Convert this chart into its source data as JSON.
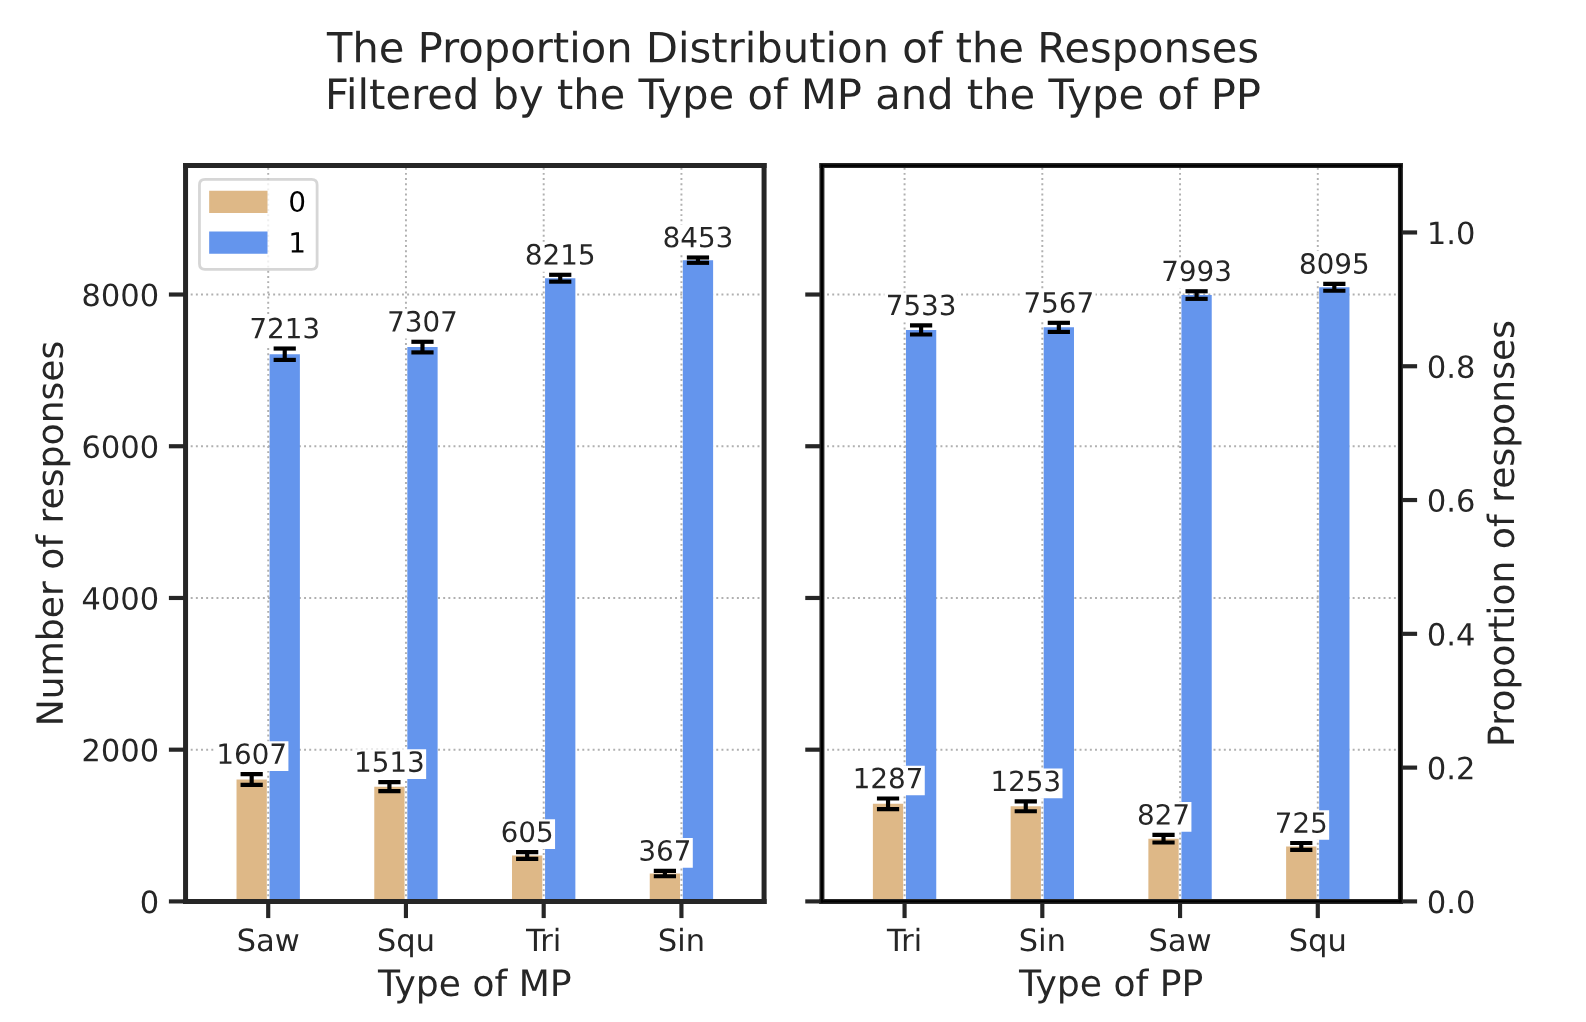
{
  "chart_data": [
    {
      "type": "bar",
      "title": "The Proportion Distribution of the Responses\nFiltered by the Type of MP and the Type of PP",
      "xlabel": "Type of MP",
      "ylabel": "Number of responses",
      "categories": [
        "Saw",
        "Squ",
        "Tri",
        "Sin"
      ],
      "series": [
        {
          "name": "0",
          "color": "#deb887",
          "values": [
            1607,
            1513,
            605,
            367
          ],
          "errors": [
            70,
            60,
            45,
            35
          ]
        },
        {
          "name": "1",
          "color": "#6495ed",
          "values": [
            7213,
            7307,
            8215,
            8453
          ],
          "errors": [
            75,
            70,
            45,
            35
          ]
        }
      ],
      "ylim": [
        0,
        9700
      ],
      "yticks": [
        0,
        2000,
        4000,
        6000,
        8000
      ],
      "grid": true,
      "legend": "top left",
      "data_labels": true
    },
    {
      "type": "bar",
      "xlabel": "Type of PP",
      "y2label": "Proportion of responses",
      "categories": [
        "Tri",
        "Sin",
        "Saw",
        "Squ"
      ],
      "series": [
        {
          "color": "#deb887",
          "values": [
            1287,
            1253,
            827,
            725
          ],
          "errors": [
            70,
            65,
            50,
            45
          ]
        },
        {
          "color": "#6495ed",
          "values": [
            7533,
            7567,
            7993,
            8095
          ],
          "errors": [
            60,
            60,
            50,
            45
          ]
        }
      ],
      "ylim": [
        0,
        9700
      ],
      "yticks": [
        {
          "value": 0,
          "label": null
        },
        {
          "value": 2000,
          "label": null
        },
        {
          "value": 4000,
          "label": null
        },
        {
          "value": 6000,
          "label": null
        },
        {
          "value": 8000,
          "label": null
        }
      ],
      "y2lim": [
        0,
        1.1
      ],
      "y2ticks": [
        {
          "value": 0,
          "label": "0.0"
        },
        {
          "value": 0.2,
          "label": "0.2"
        },
        {
          "value": 0.4,
          "label": "0.4"
        },
        {
          "value": 0.6,
          "label": "0.6"
        },
        {
          "value": 0.8,
          "label": "0.8"
        },
        {
          "value": 1,
          "label": "1.0"
        }
      ],
      "tick_labels": "x",
      "grid": true,
      "data_labels": true
    }
  ]
}
